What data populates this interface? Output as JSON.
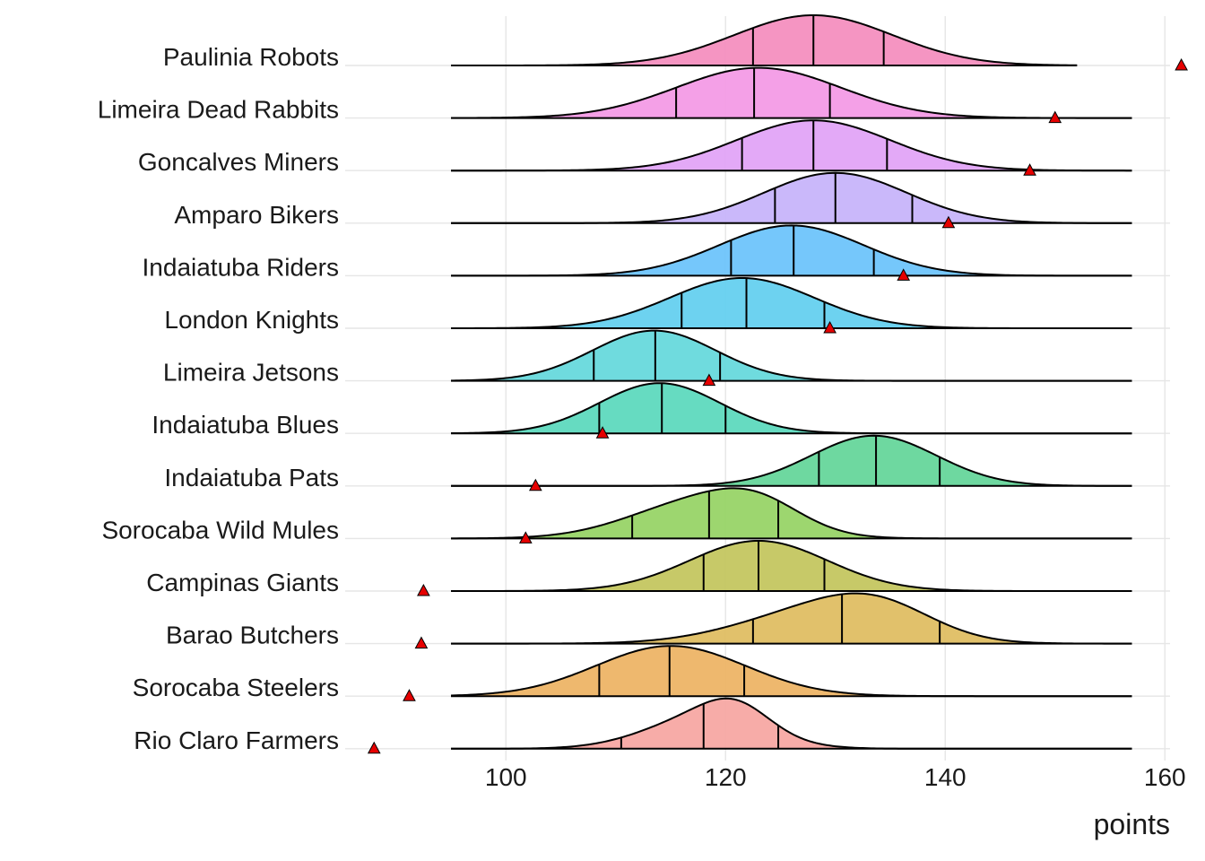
{
  "chart_data": {
    "type": "ridgeline",
    "xlabel": "points",
    "ylabel": "",
    "xlim": [
      87,
      162
    ],
    "x_ticks": [
      100,
      120,
      140,
      160
    ],
    "grid": true,
    "marker": "red triangle",
    "series": [
      {
        "name": "Paulinia Robots",
        "color": "#f48fbf",
        "range": [
          95,
          152
        ],
        "peaks": [
          [
            128,
            1.0,
            7.2
          ]
        ],
        "quantiles": [
          122.5,
          128,
          134.4
        ],
        "marker": 161.5
      },
      {
        "name": "Limeira Dead Rabbits",
        "color": "#f39be6",
        "range": [
          95,
          157
        ],
        "peaks": [
          [
            123,
            1.0,
            7.5
          ]
        ],
        "quantiles": [
          115.5,
          122.6,
          129.5
        ],
        "marker": 150.0
      },
      {
        "name": "Goncalves Miners",
        "color": "#e2a4f7",
        "range": [
          95,
          157
        ],
        "peaks": [
          [
            128,
            1.0,
            7.0
          ]
        ],
        "quantiles": [
          121.5,
          128,
          134.7
        ],
        "marker": 147.7
      },
      {
        "name": "Amparo Bikers",
        "color": "#c7b4fa",
        "range": [
          95,
          157
        ],
        "peaks": [
          [
            130,
            1.0,
            6.5
          ]
        ],
        "quantiles": [
          124.5,
          130,
          137.0
        ],
        "marker": 140.3
      },
      {
        "name": "Indaiatuba Riders",
        "color": "#6ec4fb",
        "range": [
          95,
          157
        ],
        "peaks": [
          [
            126,
            1.0,
            6.6
          ]
        ],
        "quantiles": [
          120.5,
          126.2,
          133.5
        ],
        "marker": 136.2
      },
      {
        "name": "London Knights",
        "color": "#65d0ef",
        "range": [
          95,
          157
        ],
        "peaks": [
          [
            121.5,
            1.0,
            6.6
          ]
        ],
        "quantiles": [
          116.0,
          121.9,
          129.0
        ],
        "marker": 129.5
      },
      {
        "name": "Limeira Jetsons",
        "color": "#67d9dc",
        "range": [
          95,
          157
        ],
        "peaks": [
          [
            113.5,
            1.0,
            5.6
          ]
        ],
        "quantiles": [
          108.0,
          113.6,
          119.5
        ],
        "marker": 118.5
      },
      {
        "name": "Indaiatuba Blues",
        "color": "#5ed9be",
        "range": [
          95,
          157
        ],
        "peaks": [
          [
            114,
            1.0,
            5.5
          ]
        ],
        "quantiles": [
          108.5,
          114.2,
          120.0
        ],
        "marker": 108.8
      },
      {
        "name": "Indaiatuba Pats",
        "color": "#66d69b",
        "range": [
          95,
          157
        ],
        "peaks": [
          [
            133.5,
            1.0,
            5.7
          ]
        ],
        "quantiles": [
          128.5,
          133.7,
          139.5
        ],
        "marker": 102.7
      },
      {
        "name": "Sorocaba Wild Mules",
        "color": "#98d467",
        "range": [
          95,
          157
        ],
        "peaks": [
          [
            117.5,
            1.0,
            6.2
          ],
          [
            123,
            0.6,
            4.0
          ]
        ],
        "quantiles": [
          111.5,
          118.5,
          124.8
        ],
        "marker": 101.8
      },
      {
        "name": "Campinas Giants",
        "color": "#c4c660",
        "range": [
          95,
          157
        ],
        "peaks": [
          [
            123,
            1.0,
            6.3
          ]
        ],
        "quantiles": [
          118.0,
          123.0,
          129.0
        ],
        "marker": 92.5
      },
      {
        "name": "Barao Butchers",
        "color": "#dfbe63",
        "range": [
          95,
          157
        ],
        "peaks": [
          [
            128,
            1.0,
            7.0
          ],
          [
            134,
            0.85,
            5.0
          ]
        ],
        "quantiles": [
          122.5,
          130.6,
          139.5
        ],
        "marker": 92.3
      },
      {
        "name": "Sorocaba Steelers",
        "color": "#edb466",
        "range": [
          95,
          157
        ],
        "peaks": [
          [
            115,
            1.0,
            6.8
          ]
        ],
        "quantiles": [
          108.5,
          114.9,
          121.7
        ],
        "marker": 91.2
      },
      {
        "name": "Rio Claro Farmers",
        "color": "#f7a8a3",
        "range": [
          95,
          157
        ],
        "peaks": [
          [
            118,
            1.0,
            5.2
          ],
          [
            121,
            0.7,
            3.0
          ]
        ],
        "quantiles": [
          110.5,
          118.0,
          124.8
        ],
        "marker": 88.0
      }
    ]
  }
}
